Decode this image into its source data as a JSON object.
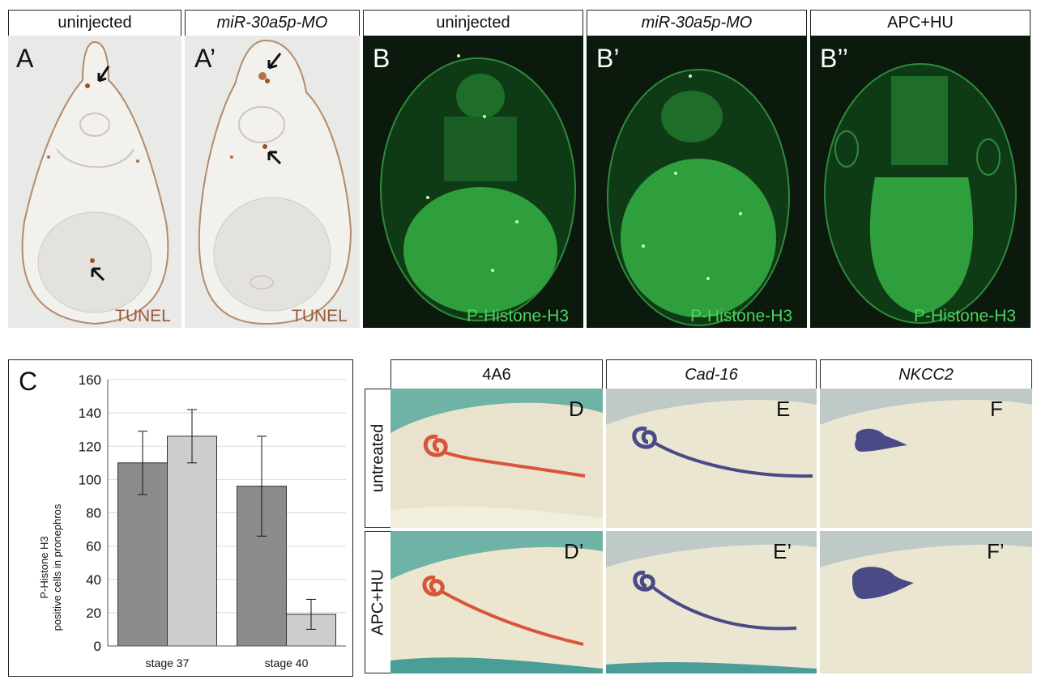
{
  "top_row": {
    "headers": [
      "uninjected",
      "miR-30a5p-MO",
      "uninjected",
      "miR-30a5p-MO",
      "APC+HU"
    ],
    "panel_letters": [
      "A",
      "A’",
      "B",
      "B’",
      "B’’"
    ],
    "stain_labels": [
      "TUNEL",
      "TUNEL",
      "P-Histone-H3",
      "P-Histone-H3",
      "P-Histone-H3"
    ]
  },
  "chart_panel_letter": "C",
  "chart_data": {
    "type": "bar",
    "categories": [
      "stage 37",
      "stage 40"
    ],
    "series": [
      {
        "values": [
          110,
          96
        ],
        "errors": [
          19,
          30
        ],
        "color": "#8c8c8c"
      },
      {
        "values": [
          126,
          19
        ],
        "errors": [
          16,
          9
        ],
        "color": "#cdcdcd"
      }
    ],
    "ylabel_line1": "P-Histone H3",
    "ylabel_line2": "positive cells in pronephros",
    "ylim": [
      0,
      160
    ],
    "yticks": [
      "0",
      "20",
      "40",
      "60",
      "80",
      "100",
      "120",
      "140",
      "160"
    ],
    "grid": true
  },
  "bottom_right": {
    "col_headers": [
      "4A6",
      "Cad-16",
      "NKCC2"
    ],
    "row_headers": [
      "untreated",
      "APC+HU"
    ],
    "panel_letters": [
      "D",
      "E",
      "F",
      "D’",
      "E’",
      "F’"
    ]
  },
  "colors": {
    "tunel_stain": "#9a5a3a",
    "ph3_stain": "#4cd45a",
    "embryo_green": "#2f9e3c",
    "stain_4a6": "#d8553c",
    "stain_purple": "#4a4a86"
  }
}
